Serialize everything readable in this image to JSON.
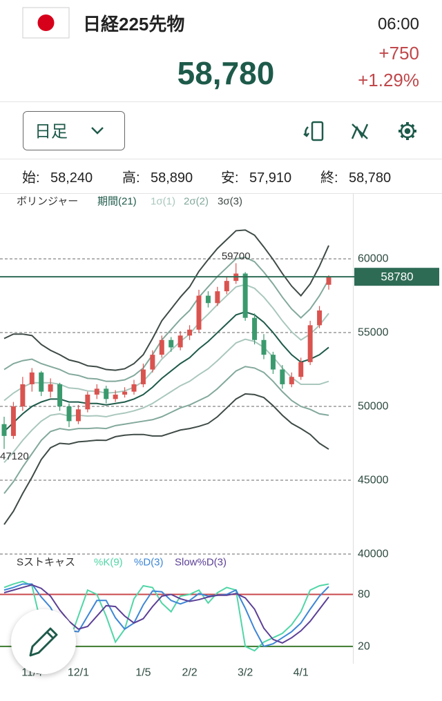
{
  "header": {
    "title": "日経225先物",
    "time": "06:00",
    "price": "58,780",
    "change": "+750",
    "change_pct": "+1.29%"
  },
  "toolbar": {
    "period": "日足"
  },
  "ohlc": {
    "labels": [
      "始:",
      "高:",
      "安:",
      "終:"
    ],
    "values": [
      "58,240",
      "58,890",
      "57,910",
      "58,780"
    ]
  },
  "chart_data": [
    {
      "type": "candlestick",
      "title": "ボリンジャー",
      "categories": [
        null,
        null,
        null,
        "11/4",
        null,
        null,
        null,
        null,
        "12/1",
        null,
        null,
        null,
        null,
        null,
        null,
        "1/5",
        null,
        null,
        null,
        null,
        "2/2",
        null,
        null,
        null,
        null,
        null,
        "3/2",
        null,
        null,
        null,
        null,
        null,
        "4/1",
        null,
        null,
        null
      ],
      "open": [
        48800,
        48000,
        50000,
        51500,
        52300,
        51000,
        51500,
        50000,
        49000,
        49800,
        50800,
        51200,
        50500,
        50800,
        51000,
        51500,
        52500,
        53500,
        54500,
        54000,
        54800,
        55200,
        57500,
        57000,
        57800,
        58500,
        59000,
        56000,
        54500,
        53500,
        52500,
        51500,
        52000,
        53000,
        55500,
        58240
      ],
      "high": [
        49300,
        50300,
        52000,
        52600,
        52400,
        51900,
        51600,
        50200,
        50100,
        51000,
        51500,
        51400,
        51100,
        51300,
        51800,
        52900,
        53800,
        54800,
        54700,
        55100,
        55500,
        57900,
        57800,
        58100,
        58800,
        59700,
        59100,
        56300,
        54900,
        53700,
        52800,
        52300,
        53300,
        55800,
        56800,
        58890
      ],
      "low": [
        47120,
        47800,
        49700,
        51000,
        50700,
        50600,
        49700,
        48600,
        48800,
        49600,
        50500,
        50200,
        50300,
        50600,
        50800,
        51300,
        52300,
        53300,
        53700,
        53800,
        54500,
        55000,
        56700,
        56800,
        57600,
        58300,
        55800,
        54200,
        53200,
        52200,
        51200,
        51300,
        51800,
        52800,
        55300,
        57910
      ],
      "close": [
        48000,
        50000,
        51500,
        52300,
        51000,
        51500,
        50000,
        49000,
        49800,
        50800,
        51200,
        50500,
        50800,
        51000,
        51500,
        52500,
        53500,
        54500,
        54000,
        54800,
        55200,
        57500,
        57000,
        57800,
        58500,
        59000,
        56000,
        54500,
        53500,
        52500,
        51500,
        52000,
        53000,
        55500,
        56500,
        58780
      ],
      "up_color": "#d9534f",
      "down_color": "#3a9a6e",
      "series": [
        {
          "name": "期間(21)",
          "color": "#1e5a4a",
          "values": [
            48300,
            48900,
            49500,
            50000,
            50300,
            50500,
            50500,
            50300,
            50300,
            50200,
            50200,
            50100,
            50200,
            50300,
            50500,
            50800,
            51300,
            51900,
            52400,
            52900,
            53300,
            53900,
            54400,
            55000,
            55600,
            56200,
            56400,
            56200,
            55700,
            55000,
            54200,
            53500,
            53000,
            53200,
            53500,
            54000
          ]
        },
        {
          "name": "1σ(1)",
          "color": "#a9c7bd",
          "upper": [
            50400,
            50900,
            51300,
            51600,
            51600,
            51600,
            51500,
            51250,
            51200,
            51050,
            51030,
            50900,
            50950,
            51050,
            51300,
            51700,
            52400,
            53200,
            53800,
            54400,
            54900,
            55650,
            56250,
            56900,
            57500,
            58100,
            58250,
            58000,
            57400,
            56650,
            55800,
            55050,
            54500,
            54900,
            55500,
            56300
          ],
          "lower": [
            46200,
            46900,
            47700,
            48400,
            49000,
            49400,
            49500,
            49350,
            49400,
            49350,
            49370,
            49300,
            49450,
            49550,
            49700,
            49900,
            50200,
            50600,
            51000,
            51400,
            51700,
            52150,
            52550,
            53100,
            53700,
            54300,
            54550,
            54400,
            54000,
            53350,
            52600,
            51950,
            51500,
            51500,
            51500,
            51700
          ]
        },
        {
          "name": "2σ(2)",
          "color": "#82a89c",
          "upper": [
            52500,
            52900,
            53100,
            53200,
            52900,
            52700,
            52500,
            52200,
            52100,
            51900,
            51860,
            51700,
            51700,
            51800,
            52100,
            52600,
            53500,
            54500,
            55200,
            55900,
            56500,
            57400,
            58100,
            58800,
            59400,
            60000,
            60100,
            59800,
            59100,
            58300,
            57400,
            56600,
            56000,
            56600,
            57500,
            58600
          ],
          "lower": [
            44100,
            44900,
            45900,
            46800,
            47700,
            48300,
            48500,
            48400,
            48500,
            48500,
            48540,
            48500,
            48700,
            48800,
            48900,
            49000,
            49100,
            49300,
            49600,
            49900,
            50100,
            50400,
            50700,
            51200,
            51800,
            52400,
            52700,
            52600,
            52300,
            51700,
            51000,
            50400,
            50000,
            49800,
            49500,
            49400
          ]
        },
        {
          "name": "3σ(3)",
          "color": "#3e4a46",
          "upper": [
            54600,
            54900,
            54900,
            54800,
            54200,
            53800,
            53500,
            53150,
            53000,
            52750,
            52690,
            52500,
            52450,
            52550,
            52900,
            53500,
            54600,
            55800,
            56600,
            57400,
            58100,
            59150,
            59950,
            60700,
            61300,
            61900,
            61950,
            61600,
            60800,
            59950,
            59000,
            58150,
            57500,
            58300,
            59500,
            60900
          ],
          "lower": [
            42000,
            42900,
            44100,
            45200,
            46400,
            47200,
            47500,
            47450,
            47600,
            47650,
            47710,
            47700,
            47950,
            48050,
            48100,
            48100,
            48000,
            48000,
            48200,
            48400,
            48500,
            48650,
            48850,
            49300,
            49900,
            50500,
            50850,
            50800,
            50600,
            50050,
            49400,
            48850,
            48500,
            48100,
            47500,
            47100
          ]
        }
      ],
      "ylim": [
        40000,
        64350
      ],
      "yticks": [
        40000,
        45000,
        50000,
        55000,
        60000
      ],
      "grid": true,
      "annotations": [
        {
          "value": 59700,
          "label": "59700"
        },
        {
          "value": 47120,
          "label": "47120"
        }
      ],
      "last": {
        "value": 58780,
        "label": "58780",
        "color": "#2e6b55"
      }
    },
    {
      "type": "line",
      "title": "Sストキャス",
      "series": [
        {
          "name": "%K(9)",
          "color": "#4fd6a6",
          "values": [
            88,
            92,
            95,
            90,
            45,
            60,
            30,
            25,
            55,
            85,
            80,
            55,
            25,
            40,
            75,
            90,
            88,
            70,
            60,
            78,
            80,
            85,
            70,
            82,
            88,
            85,
            20,
            15,
            25,
            30,
            35,
            45,
            60,
            85,
            90,
            92
          ]
        },
        {
          "name": "%D(3)",
          "color": "#3d86d6",
          "values": [
            85,
            88,
            92,
            92,
            77,
            65,
            45,
            38,
            37,
            55,
            73,
            73,
            53,
            40,
            47,
            68,
            84,
            83,
            73,
            69,
            73,
            81,
            78,
            79,
            80,
            85,
            64,
            40,
            20,
            23,
            30,
            37,
            47,
            63,
            78,
            89
          ]
        },
        {
          "name": "Slow%D(3)",
          "color": "#5b3f96",
          "values": [
            82,
            85,
            88,
            91,
            87,
            78,
            62,
            49,
            40,
            43,
            55,
            67,
            66,
            55,
            47,
            52,
            66,
            78,
            80,
            75,
            72,
            74,
            77,
            79,
            79,
            81,
            76,
            63,
            41,
            28,
            24,
            30,
            38,
            49,
            63,
            77
          ]
        }
      ],
      "ylim": [
        0,
        125
      ],
      "yticks": [
        20,
        80
      ],
      "ytick_colors": [
        "#3b7a2e",
        "#c9474a"
      ]
    }
  ]
}
